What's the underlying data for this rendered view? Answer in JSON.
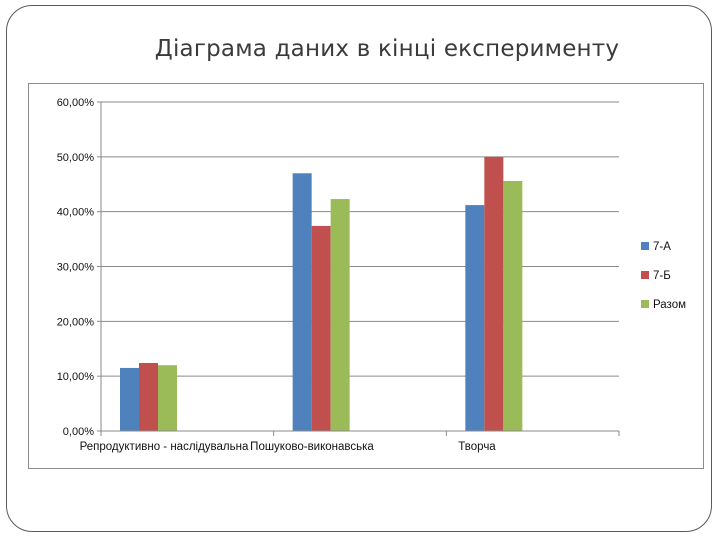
{
  "slide": {
    "title": "Діаграма даних в кінці експерименту"
  },
  "chart_data": {
    "type": "bar",
    "categories": [
      "Репродуктивно - наслідувальна",
      "Пошуково-виконавська",
      "Творча"
    ],
    "series": [
      {
        "name": "7-А",
        "color": "#4f81bd",
        "values": [
          11.5,
          47.0,
          41.2
        ]
      },
      {
        "name": "7-Б",
        "color": "#c0504d",
        "values": [
          12.4,
          37.4,
          50.0
        ]
      },
      {
        "name": "Разом",
        "color": "#9bbb59",
        "values": [
          12.0,
          42.3,
          45.6
        ]
      }
    ],
    "y_ticks": [
      "0,00%",
      "10,00%",
      "20,00%",
      "30,00%",
      "40,00%",
      "50,00%",
      "60,00%"
    ],
    "ylim": [
      0,
      60
    ],
    "grid": true,
    "legend": "right"
  }
}
